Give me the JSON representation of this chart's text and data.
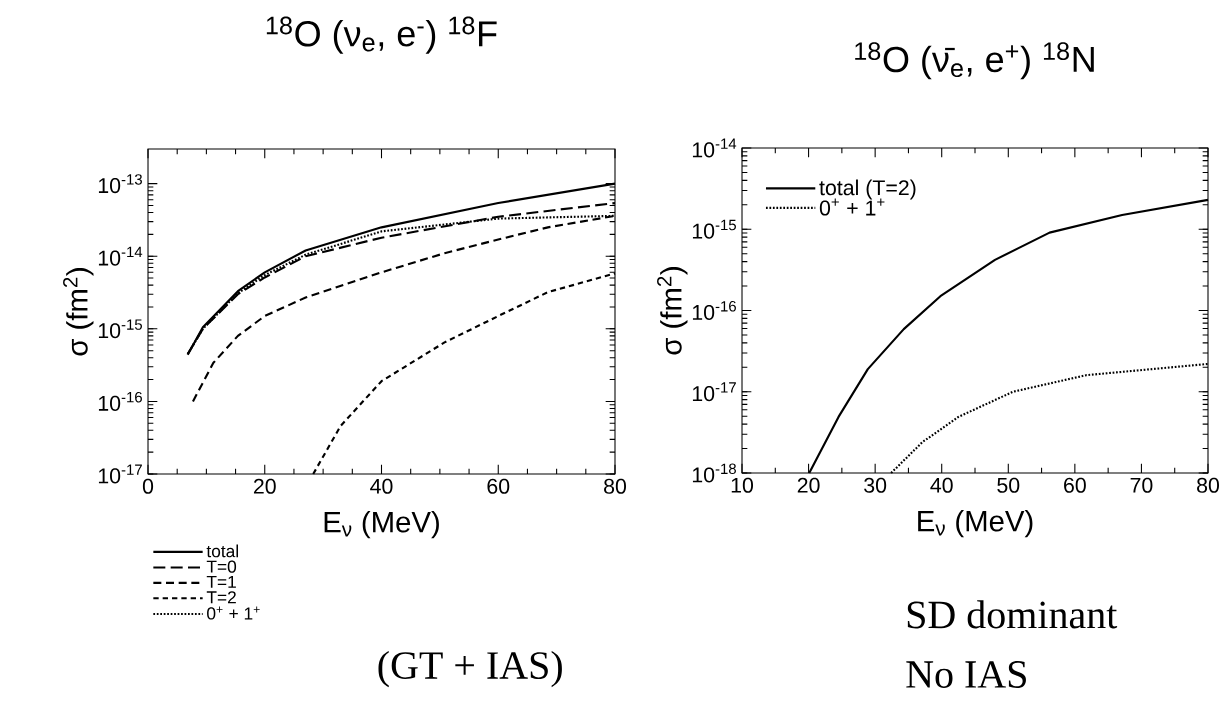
{
  "chart_data": [
    {
      "type": "line",
      "title": "$^{18}$O (ν$_{e}$, e$^{-}$) $^{18}$F",
      "xlabel": "E$_{ν}$ (MeV)",
      "ylabel": "σ (fm$^{2}$)",
      "log": "y",
      "xlim": [
        0,
        80
      ],
      "xticks": [
        0,
        20,
        40,
        60,
        80
      ],
      "ylim": [
        1e-17,
        3e-13
      ],
      "yticks": [
        {
          "value": 1e-17,
          "label": "10$^{-17}$"
        },
        {
          "value": 1e-16,
          "label": "10$^{-16}$"
        },
        {
          "value": 1e-15,
          "label": "10$^{-15}$"
        },
        {
          "value": 1e-14,
          "label": "10$^{-14}$"
        },
        {
          "value": 1e-13,
          "label": "10$^{-13}$"
        }
      ],
      "legend": "bottom left",
      "annotations": [
        "(GT + IAS)"
      ],
      "series": [
        {
          "name": "total",
          "color": "#000000",
          "line_style": "solid",
          "x": [
            6.8,
            9.4,
            15.4,
            20,
            27,
            40,
            60,
            80
          ],
          "values": [
            4.4e-16,
            1.05e-15,
            3.3e-15,
            6e-15,
            1.2e-14,
            2.5e-14,
            5.4e-14,
            1e-13
          ]
        },
        {
          "name": "T=0",
          "color": "#000000",
          "line_style": "dashed",
          "x": [
            6.8,
            9.4,
            15.4,
            20,
            27,
            40,
            60,
            80
          ],
          "values": [
            4.5e-16,
            1e-15,
            3e-15,
            5.1e-15,
            1e-14,
            1.8e-14,
            3.5e-14,
            5.4e-14
          ]
        },
        {
          "name": "T=1",
          "color": "#000000",
          "line_style": "dashed",
          "x": [
            7.7,
            11.2,
            15.4,
            20,
            27,
            40,
            50.8,
            60,
            68.5,
            80
          ],
          "values": [
            1e-16,
            3.4e-16,
            8e-16,
            1.5e-15,
            2.7e-15,
            6e-15,
            1.1e-14,
            1.7e-14,
            2.5e-14,
            3.6e-14
          ]
        },
        {
          "name": "T=2",
          "color": "#000000",
          "line_style": "dashed",
          "x": [
            28.3,
            33,
            40,
            50.8,
            60,
            68.5,
            80
          ],
          "values": [
            1e-17,
            4.6e-17,
            1.9e-16,
            6.5e-16,
            1.5e-15,
            3.2e-15,
            5.8e-15
          ]
        },
        {
          "name": "0$^{+}$ + 1$^{+}$",
          "color": "#000000",
          "line_style": "dotted",
          "x": [
            6.8,
            9.4,
            15.4,
            20,
            27,
            40,
            60,
            80
          ],
          "values": [
            4.5e-16,
            1e-15,
            3.1e-15,
            5.5e-15,
            1.05e-14,
            2.2e-14,
            3.3e-14,
            3.6e-14
          ]
        }
      ]
    },
    {
      "type": "line",
      "title": "$^{18}$O (ν̄$_{e}$, e$^{+}$) $^{18}$N",
      "xlabel": "E$_{ν}$ (MeV)",
      "ylabel": "σ (fm$^{2}$)",
      "log": "y",
      "xlim": [
        10,
        80
      ],
      "xticks": [
        10,
        20,
        30,
        40,
        50,
        60,
        70,
        80
      ],
      "ylim": [
        1e-18,
        1e-14
      ],
      "yticks": [
        {
          "value": 1e-18,
          "label": "10$^{-18}$"
        },
        {
          "value": 1e-17,
          "label": "10$^{-17}$"
        },
        {
          "value": 1e-16,
          "label": "10$^{-16}$"
        },
        {
          "value": 1e-15,
          "label": "10$^{-15}$"
        },
        {
          "value": 1e-14,
          "label": "10$^{-14}$"
        }
      ],
      "legend": "top left",
      "annotations": [
        "SD dominant",
        "No IAS"
      ],
      "series": [
        {
          "name": "total (T=2)",
          "color": "#000000",
          "line_style": "solid",
          "x": [
            20.1,
            24.5,
            28.9,
            34.3,
            39.8,
            48,
            56.2,
            67.1,
            80
          ],
          "values": [
            1e-18,
            4.9e-18,
            1.9e-17,
            5.9e-17,
            1.5e-16,
            4.2e-16,
            9.1e-16,
            1.5e-15,
            2.3e-15
          ]
        },
        {
          "name": "0$^{+}$ + 1$^{+}$",
          "color": "#000000",
          "line_style": "dotted",
          "x": [
            32.4,
            37.1,
            42.5,
            50.7,
            61.7,
            80
          ],
          "values": [
            1e-18,
            2.4e-18,
            4.9e-18,
            1e-17,
            1.6e-17,
            2.2e-17
          ]
        }
      ]
    }
  ]
}
